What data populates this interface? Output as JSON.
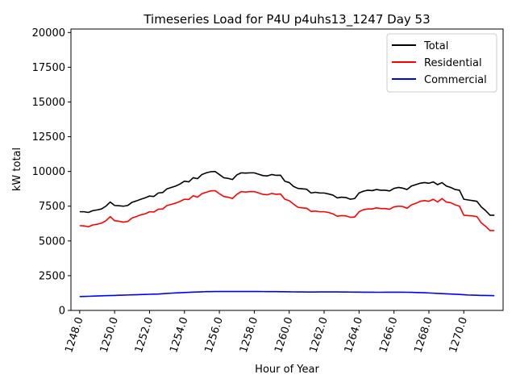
{
  "chart_data": {
    "type": "line",
    "title": "Timeseries Load for P4U p4uhs13_1247  Day 53",
    "xlabel": "Hour of Year",
    "ylabel": "kW total",
    "xlim": [
      1247.5,
      1272.25
    ],
    "ylim": [
      0,
      20250
    ],
    "xticks": [
      1248,
      1250,
      1252,
      1254,
      1256,
      1258,
      1260,
      1262,
      1264,
      1266,
      1268,
      1270
    ],
    "xtick_labels": [
      "1248.0",
      "1250.0",
      "1252.0",
      "1254.0",
      "1256.0",
      "1258.0",
      "1260.0",
      "1262.0",
      "1264.0",
      "1266.0",
      "1268.0",
      "1270.0"
    ],
    "yticks": [
      0,
      2500,
      5000,
      7500,
      10000,
      12500,
      15000,
      17500,
      20000
    ],
    "ytick_labels": [
      "0",
      "2500",
      "5000",
      "7500",
      "10000",
      "12500",
      "15000",
      "17500",
      "20000"
    ],
    "legend_position": "top-right",
    "x": [
      1248.0,
      1248.25,
      1248.5,
      1248.75,
      1249.0,
      1249.25,
      1249.5,
      1249.75,
      1250.0,
      1250.25,
      1250.5,
      1250.75,
      1251.0,
      1251.25,
      1251.5,
      1251.75,
      1252.0,
      1252.25,
      1252.5,
      1252.75,
      1253.0,
      1253.25,
      1253.5,
      1253.75,
      1254.0,
      1254.25,
      1254.5,
      1254.75,
      1255.0,
      1255.25,
      1255.5,
      1255.75,
      1256.0,
      1256.25,
      1256.5,
      1256.75,
      1257.0,
      1257.25,
      1257.5,
      1257.75,
      1258.0,
      1258.25,
      1258.5,
      1258.75,
      1259.0,
      1259.25,
      1259.5,
      1259.75,
      1260.0,
      1260.25,
      1260.5,
      1260.75,
      1261.0,
      1261.25,
      1261.5,
      1261.75,
      1262.0,
      1262.25,
      1262.5,
      1262.75,
      1263.0,
      1263.25,
      1263.5,
      1263.75,
      1264.0,
      1264.25,
      1264.5,
      1264.75,
      1265.0,
      1265.25,
      1265.5,
      1265.75,
      1266.0,
      1266.25,
      1266.5,
      1266.75,
      1267.0,
      1267.25,
      1267.5,
      1267.75,
      1268.0,
      1268.25,
      1268.5,
      1268.75,
      1269.0,
      1269.25,
      1269.5,
      1269.75,
      1270.0,
      1270.25,
      1270.5,
      1270.75,
      1271.0,
      1271.25,
      1271.5,
      1271.75
    ],
    "series": [
      {
        "name": "Total",
        "color": "#000000",
        "values": [
          7100,
          7100,
          7050,
          7180,
          7230,
          7300,
          7500,
          7800,
          7550,
          7530,
          7500,
          7550,
          7780,
          7880,
          8000,
          8100,
          8230,
          8200,
          8450,
          8480,
          8750,
          8850,
          8950,
          9100,
          9300,
          9250,
          9550,
          9480,
          9780,
          9900,
          9980,
          10000,
          9780,
          9550,
          9500,
          9420,
          9750,
          9900,
          9880,
          9900,
          9900,
          9800,
          9700,
          9680,
          9780,
          9720,
          9730,
          9300,
          9200,
          8920,
          8780,
          8750,
          8720,
          8450,
          8500,
          8450,
          8450,
          8380,
          8300,
          8100,
          8150,
          8120,
          8000,
          8050,
          8450,
          8580,
          8650,
          8620,
          8700,
          8650,
          8650,
          8600,
          8780,
          8850,
          8800,
          8700,
          8950,
          9050,
          9150,
          9200,
          9150,
          9250,
          9050,
          9200,
          8950,
          8850,
          8700,
          8650,
          8000,
          7950,
          7900,
          7850,
          7450,
          7180,
          6850,
          6850
        ]
      },
      {
        "name": "Residential",
        "color": "#ff0000",
        "values": [
          6100,
          6080,
          6020,
          6150,
          6200,
          6280,
          6450,
          6750,
          6450,
          6420,
          6350,
          6400,
          6650,
          6750,
          6880,
          6950,
          7100,
          7080,
          7280,
          7300,
          7550,
          7630,
          7720,
          7850,
          8000,
          7980,
          8250,
          8150,
          8400,
          8500,
          8600,
          8620,
          8400,
          8200,
          8150,
          8050,
          8350,
          8550,
          8520,
          8550,
          8550,
          8450,
          8350,
          8320,
          8420,
          8350,
          8380,
          8000,
          7900,
          7650,
          7420,
          7380,
          7350,
          7120,
          7150,
          7100,
          7100,
          7050,
          6950,
          6780,
          6820,
          6800,
          6700,
          6720,
          7100,
          7250,
          7300,
          7300,
          7380,
          7330,
          7330,
          7280,
          7450,
          7500,
          7480,
          7350,
          7600,
          7700,
          7850,
          7900,
          7850,
          8000,
          7800,
          8050,
          7800,
          7750,
          7600,
          7500,
          6850,
          6820,
          6800,
          6750,
          6300,
          6050,
          5750,
          5750
        ]
      },
      {
        "name": "Commercial",
        "color": "#0000ff",
        "values": [
          1000,
          1005,
          1015,
          1025,
          1040,
          1050,
          1060,
          1070,
          1080,
          1090,
          1100,
          1110,
          1120,
          1130,
          1140,
          1150,
          1160,
          1170,
          1180,
          1200,
          1220,
          1240,
          1260,
          1275,
          1290,
          1300,
          1315,
          1325,
          1340,
          1350,
          1355,
          1360,
          1360,
          1362,
          1362,
          1362,
          1362,
          1362,
          1360,
          1360,
          1360,
          1358,
          1356,
          1355,
          1352,
          1350,
          1348,
          1345,
          1340,
          1335,
          1330,
          1328,
          1325,
          1325,
          1325,
          1328,
          1330,
          1330,
          1330,
          1328,
          1325,
          1322,
          1320,
          1318,
          1315,
          1312,
          1310,
          1308,
          1305,
          1305,
          1308,
          1310,
          1312,
          1312,
          1310,
          1305,
          1300,
          1290,
          1280,
          1270,
          1255,
          1240,
          1225,
          1210,
          1195,
          1180,
          1165,
          1150,
          1130,
          1110,
          1100,
          1090,
          1080,
          1075,
          1070,
          1065
        ]
      }
    ]
  }
}
